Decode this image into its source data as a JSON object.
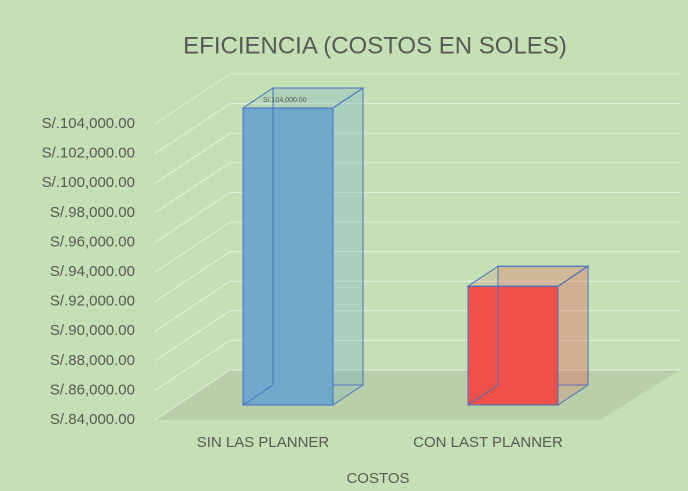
{
  "chart_data": {
    "type": "bar3d",
    "title": "EFICIENCIA (COSTOS EN SOLES)",
    "x_label": "COSTOS",
    "categories": [
      "SIN LAS PLANNER",
      "CON LAST PLANNER"
    ],
    "values": [
      104000,
      92000
    ],
    "value_labels": [
      "S/.104,000.00",
      null
    ],
    "colors": [
      "#70a8cc",
      "#f0504a"
    ],
    "ylim": [
      84000,
      104000
    ],
    "yticks": [
      {
        "value": 84000,
        "label": "S/.84,000.00"
      },
      {
        "value": 86000,
        "label": "S/.86,000.00"
      },
      {
        "value": 88000,
        "label": "S/.88,000.00"
      },
      {
        "value": 90000,
        "label": "S/.90,000.00"
      },
      {
        "value": 92000,
        "label": "S/.92,000.00"
      },
      {
        "value": 94000,
        "label": "S/.94,000.00"
      },
      {
        "value": 96000,
        "label": "S/.96,000.00"
      },
      {
        "value": 98000,
        "label": "S/.98,000.00"
      },
      {
        "value": 100000,
        "label": "S/.100,000.00"
      },
      {
        "value": 102000,
        "label": "S/.102,000.00"
      },
      {
        "value": 104000,
        "label": "S/.104,000.00"
      }
    ],
    "grid": true
  }
}
